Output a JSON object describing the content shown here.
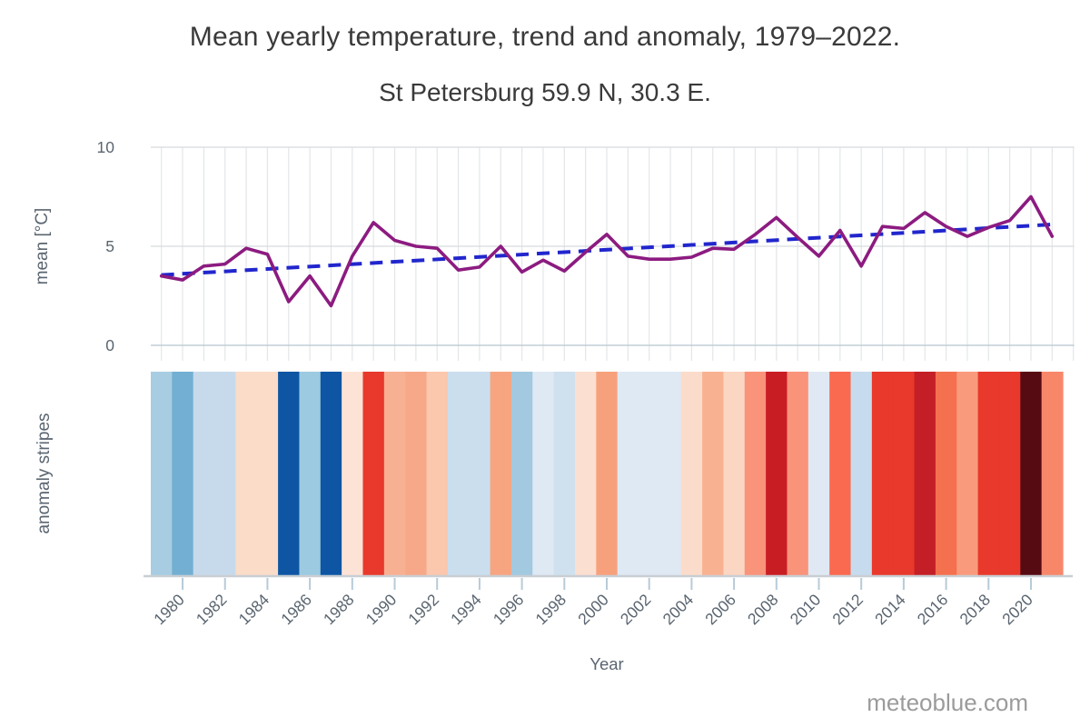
{
  "header": {
    "title": "Mean yearly temperature, trend and anomaly, 1979–2022.",
    "subtitle": "St Petersburg 59.9 N, 30.3 E."
  },
  "watermark": "meteoblue.com",
  "chart_data": {
    "type": "line",
    "title": "Mean yearly temperature, trend and anomaly, 1979–2022.",
    "subtitle": "St Petersburg 59.9 N, 30.3 E.",
    "xlabel": "Year",
    "ylabel_top": "mean [°C]",
    "ylabel_bottom": "anomaly stripes",
    "ylim": [
      0,
      10
    ],
    "yticks": [
      0,
      5,
      10
    ],
    "ytick_labels": [
      "0",
      "5",
      "10"
    ],
    "xticks": [
      1980,
      1982,
      1984,
      1986,
      1988,
      1990,
      1992,
      1994,
      1996,
      1998,
      2000,
      2002,
      2004,
      2006,
      2008,
      2010,
      2012,
      2014,
      2016,
      2018,
      2020
    ],
    "grid": true,
    "x": [
      1979,
      1980,
      1981,
      1982,
      1983,
      1984,
      1985,
      1986,
      1987,
      1988,
      1989,
      1990,
      1991,
      1992,
      1993,
      1994,
      1995,
      1996,
      1997,
      1998,
      1999,
      2000,
      2001,
      2002,
      2003,
      2004,
      2005,
      2006,
      2007,
      2008,
      2009,
      2010,
      2011,
      2012,
      2013,
      2014,
      2015,
      2016,
      2017,
      2018,
      2019,
      2020,
      2021
    ],
    "series": [
      {
        "name": "mean yearly temperature",
        "style": "solid",
        "color": "#8c1b80",
        "values": [
          3.5,
          3.3,
          4.0,
          4.1,
          4.9,
          4.6,
          2.2,
          3.5,
          2.0,
          4.5,
          6.2,
          5.3,
          5.0,
          4.9,
          3.8,
          3.95,
          5.0,
          3.7,
          4.3,
          3.75,
          4.7,
          5.6,
          4.5,
          4.35,
          4.35,
          4.45,
          4.9,
          4.85,
          5.6,
          6.45,
          5.45,
          4.5,
          5.8,
          4.0,
          6.0,
          5.9,
          6.7,
          6.0,
          5.5,
          5.95,
          6.3,
          7.5,
          5.5
        ]
      },
      {
        "name": "linear trend",
        "style": "dashed",
        "color": "#2126cd",
        "values_endpoints": [
          3.55,
          6.1
        ]
      }
    ],
    "anomaly_stripes": {
      "colors": [
        "#a8cde2",
        "#72afd3",
        "#c7daeb",
        "#c7daeb",
        "#fadcc9",
        "#fadcc9",
        "#0e56a4",
        "#9ccae1",
        "#0e56a4",
        "#fde3d6",
        "#e8392c",
        "#f8b093",
        "#f7a888",
        "#fbc7ad",
        "#cbdeee",
        "#cbdeee",
        "#f7a580",
        "#a2c9e0",
        "#dfe9f3",
        "#cfe0ef",
        "#fbdfd0",
        "#f7a17c",
        "#dfe9f3",
        "#dfe9f3",
        "#dfe9f3",
        "#fbdcca",
        "#f9b291",
        "#fbd6c2",
        "#f9937a",
        "#c91d24",
        "#f9937a",
        "#e0e9f3",
        "#fa6a51",
        "#c6dbee",
        "#e8392c",
        "#e8392c",
        "#c41f26",
        "#f4704f",
        "#f99a7c",
        "#e8392c",
        "#e8392c",
        "#560a12",
        "#f8876a"
      ]
    },
    "colors": {
      "mean_line": "#8c1b80",
      "trend_line": "#2126cd",
      "grid_vertical": "#e3e6e8",
      "grid_horizontal": "#d8dbdd",
      "zero_line": "#c2cdd5",
      "axis_line": "#c9ced3",
      "tick_mark": "#b6cbd9",
      "tick_text": "#5a6570",
      "watermark_text": "#9b9b9b"
    }
  }
}
